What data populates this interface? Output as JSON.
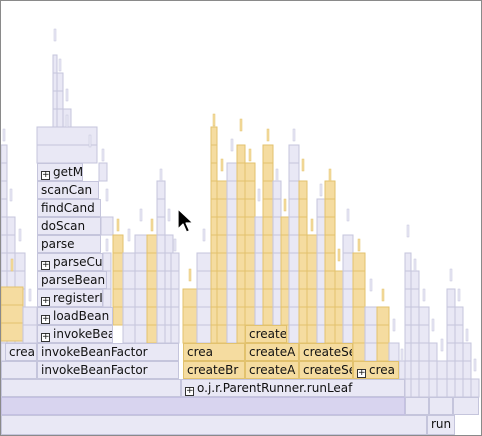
{
  "flame_labels": {
    "get": "getM",
    "scan": "scanCan",
    "find": "findCand",
    "doscan": "doScan",
    "parse": "parse",
    "parsecu": "parseCu",
    "parsebean": "parseBean",
    "register": "registerI",
    "load": "loadBean",
    "invoke": "invokeBean",
    "invoke_factory_1": "invokeBeanFactor",
    "invoke_factory_2": "invokeBeanFactor",
    "crea_left": "crea",
    "crea_mid": "crea",
    "create_top": "create",
    "create_br": "createBr",
    "create_a1": "createA",
    "create_a2": "createA",
    "create_s1": "createSe",
    "create_s2": "createSe",
    "crea_right": "crea",
    "run_leaf": "o.j.r.ParentRunner.runLeaf",
    "run": "run"
  },
  "expander_glyph": "+",
  "icons": {
    "expand": "plus-box-icon",
    "cursor": "mouse-pointer-icon"
  },
  "colors": {
    "frame_default": "#e9e8f5",
    "frame_highlight": "#f5dca0",
    "frame_base": "#d8d4ef"
  }
}
